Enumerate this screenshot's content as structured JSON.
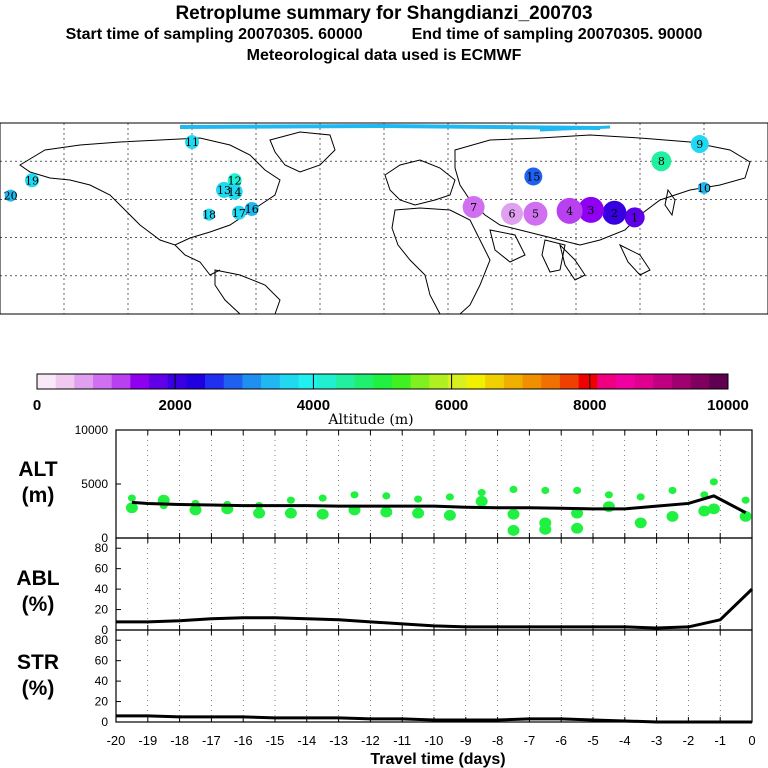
{
  "header": {
    "title": "Retroplume summary for Shangdianzi_200703",
    "line2_start": "Start time of sampling 20070305. 60000",
    "line2_end": "End time of sampling 20070305. 90000",
    "line3": "Meteorological data used is ECMWF"
  },
  "map": {
    "description_labels": [
      "1",
      "2",
      "3",
      "4",
      "5",
      "6",
      "7",
      "8",
      "9",
      "10",
      "11",
      "12",
      "13",
      "14",
      "15",
      "16",
      "17",
      "18",
      "19",
      "20"
    ],
    "plume_points": [
      {
        "day": "1",
        "lon": 117.5,
        "lat": 40.6
      },
      {
        "day": "2",
        "lon": 108.0,
        "lat": 43.0
      },
      {
        "day": "3",
        "lon": 97.0,
        "lat": 44.5
      },
      {
        "day": "4",
        "lon": 87.0,
        "lat": 44.0
      },
      {
        "day": "5",
        "lon": 71.0,
        "lat": 42.5
      },
      {
        "day": "6",
        "lon": 60.0,
        "lat": 42.5
      },
      {
        "day": "7",
        "lon": 42.0,
        "lat": 46.0
      },
      {
        "day": "8",
        "lon": 130.0,
        "lat": 70.0
      },
      {
        "day": "9",
        "lon": 148.0,
        "lat": 79.0
      },
      {
        "day": "10",
        "lon": 150.0,
        "lat": 56.0
      },
      {
        "day": "11",
        "lon": -90.0,
        "lat": 80.0
      },
      {
        "day": "12",
        "lon": -70.0,
        "lat": 60.0
      },
      {
        "day": "13",
        "lon": -75.0,
        "lat": 55.0
      },
      {
        "day": "14",
        "lon": -70.0,
        "lat": 54.0
      },
      {
        "day": "15",
        "lon": 70.0,
        "lat": 62.0
      },
      {
        "day": "16",
        "lon": -62.0,
        "lat": 45.0
      },
      {
        "day": "17",
        "lon": -68.0,
        "lat": 43.0
      },
      {
        "day": "18",
        "lon": -82.0,
        "lat": 42.0
      },
      {
        "day": "19",
        "lon": -165.0,
        "lat": 60.0
      },
      {
        "day": "20",
        "lon": -175.0,
        "lat": 52.0
      }
    ]
  },
  "colorbar": {
    "label": "Altitude (m)",
    "ticks": [
      "0",
      "2000",
      "4000",
      "6000",
      "8000",
      "10000"
    ],
    "colors": [
      "#f8e8f8",
      "#f0c8f0",
      "#e0a0f0",
      "#d070f0",
      "#b840f0",
      "#9000f0",
      "#6000e8",
      "#3800e0",
      "#2000e0",
      "#2030f0",
      "#2060f0",
      "#2090f0",
      "#20b8f0",
      "#20d8f0",
      "#20f0f0",
      "#20f0d0",
      "#20f0a0",
      "#20f070",
      "#20f040",
      "#40f020",
      "#80f020",
      "#b0f020",
      "#d8f020",
      "#f0f000",
      "#f0d000",
      "#f0b000",
      "#f09000",
      "#f07000",
      "#f04000",
      "#f00000",
      "#f00080",
      "#f000a0",
      "#e00090",
      "#c00080",
      "#a00070",
      "#800060",
      "#600050"
    ]
  },
  "alt_panel": {
    "label_line1": "ALT",
    "label_line2": "(m)",
    "yticks": [
      "0",
      "5000",
      "10000"
    ]
  },
  "abl_panel": {
    "label_line1": "ABL",
    "label_line2": "(%)",
    "yticks": [
      "0",
      "20",
      "40",
      "60",
      "80"
    ]
  },
  "str_panel": {
    "label_line1": "STR",
    "label_line2": "(%)",
    "yticks": [
      "0",
      "20",
      "40",
      "60",
      "80"
    ]
  },
  "xaxis": {
    "label": "Travel time (days)",
    "ticks": [
      "-20",
      "-19",
      "-18",
      "-17",
      "-16",
      "-15",
      "-14",
      "-13",
      "-12",
      "-11",
      "-10",
      "-9",
      "-8",
      "-7",
      "-6",
      "-5",
      "-4",
      "-3",
      "-2",
      "-1",
      "0"
    ]
  },
  "chart_data": [
    {
      "type": "line",
      "title": "ALT (m)",
      "xlabel": "Travel time (days)",
      "ylabel": "Altitude (m)",
      "xlim": [
        -20,
        0
      ],
      "ylim": [
        0,
        10000
      ],
      "x": [
        -19.5,
        -19,
        -18,
        -17,
        -16,
        -15,
        -14,
        -13,
        -12,
        -11,
        -10,
        -9,
        -8,
        -7,
        -6,
        -5,
        -4,
        -3,
        -2,
        -1.2,
        -0.2
      ],
      "mean": [
        3300,
        3200,
        3100,
        3050,
        3000,
        3000,
        3000,
        2950,
        2950,
        2950,
        2950,
        2850,
        2800,
        2800,
        2750,
        2700,
        2700,
        2950,
        3200,
        3900,
        2350
      ],
      "clusters": [
        {
          "x": -19.5,
          "alts": [
            3700,
            2800
          ]
        },
        {
          "x": -18.5,
          "alts": [
            3000,
            3500
          ]
        },
        {
          "x": -17.5,
          "alts": [
            3200,
            2600
          ]
        },
        {
          "x": -16.5,
          "alts": [
            3100,
            2700
          ]
        },
        {
          "x": -15.5,
          "alts": [
            3000,
            2300
          ]
        },
        {
          "x": -14.5,
          "alts": [
            3500,
            2300
          ]
        },
        {
          "x": -13.5,
          "alts": [
            3700,
            2200
          ]
        },
        {
          "x": -12.5,
          "alts": [
            4000,
            2600
          ]
        },
        {
          "x": -11.5,
          "alts": [
            3900,
            2400
          ]
        },
        {
          "x": -10.5,
          "alts": [
            3600,
            2300
          ]
        },
        {
          "x": -9.5,
          "alts": [
            3800,
            2100
          ]
        },
        {
          "x": -8.5,
          "alts": [
            4200,
            3400
          ]
        },
        {
          "x": -7.5,
          "alts": [
            4500,
            2200,
            700
          ]
        },
        {
          "x": -6.5,
          "alts": [
            4400,
            1400,
            800
          ]
        },
        {
          "x": -5.5,
          "alts": [
            4400,
            2300,
            900
          ]
        },
        {
          "x": -4.5,
          "alts": [
            4000,
            2900
          ]
        },
        {
          "x": -3.5,
          "alts": [
            3800,
            1400
          ]
        },
        {
          "x": -2.5,
          "alts": [
            4400,
            2000
          ]
        },
        {
          "x": -1.5,
          "alts": [
            4000,
            2500
          ]
        },
        {
          "x": -1.2,
          "alts": [
            5200,
            2700
          ]
        },
        {
          "x": -0.2,
          "alts": [
            3500,
            2000
          ]
        }
      ]
    },
    {
      "type": "line",
      "title": "ABL (%)",
      "xlabel": "Travel time (days)",
      "ylabel": "ABL (%)",
      "xlim": [
        -20,
        0
      ],
      "ylim": [
        0,
        90
      ],
      "x": [
        -20,
        -19,
        -18,
        -17,
        -16,
        -15,
        -14,
        -13,
        -12,
        -11,
        -10,
        -9,
        -8,
        -7,
        -6,
        -5,
        -4,
        -3,
        -2,
        -1,
        0
      ],
      "values": [
        8,
        8,
        9,
        11,
        12,
        12,
        11,
        10,
        8,
        6,
        4,
        3,
        3,
        3,
        3,
        3,
        3,
        2,
        3,
        10,
        40
      ]
    },
    {
      "type": "line",
      "title": "STR (%)",
      "xlabel": "Travel time (days)",
      "ylabel": "STR (%)",
      "xlim": [
        -20,
        0
      ],
      "ylim": [
        0,
        90
      ],
      "x": [
        -20,
        -19,
        -18,
        -17,
        -16,
        -15,
        -14,
        -13,
        -12,
        -11,
        -10,
        -9,
        -8,
        -7,
        -6,
        -5,
        -4,
        -3,
        -2,
        -1,
        0
      ],
      "values": [
        6,
        6,
        5,
        5,
        5,
        4,
        4,
        4,
        3,
        3,
        2,
        2,
        2,
        3,
        3,
        2,
        1,
        0,
        0,
        0,
        0
      ]
    }
  ]
}
